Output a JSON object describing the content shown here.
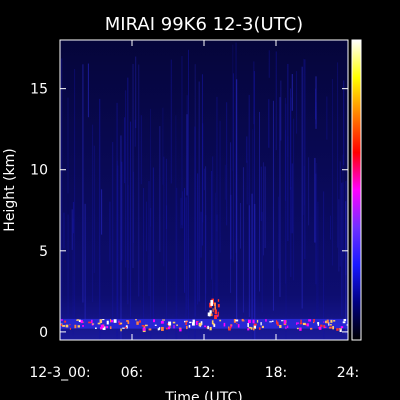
{
  "chart_data": {
    "type": "heatmap",
    "title": "MIRAI 99K6 12-3(UTC)",
    "xlabel": "Time (UTC)",
    "ylabel": "Height (km)",
    "x_tick_labels": [
      "12-3_00:",
      "06:",
      "12:",
      "18:",
      "24:"
    ],
    "x_tick_values": [
      0,
      6,
      12,
      18,
      24
    ],
    "xlim": [
      0,
      24
    ],
    "y_tick_labels": [
      "0",
      "5",
      "10",
      "15"
    ],
    "y_tick_values": [
      0,
      5,
      10,
      15
    ],
    "ylim": [
      -0.5,
      18
    ],
    "background_value_color": "#0b0b66",
    "colorbar": {
      "colors": [
        "#000000",
        "#000080",
        "#1818ff",
        "#7030ff",
        "#ff00ff",
        "#ff0000",
        "#ff8000",
        "#ffff00",
        "#ffffff"
      ],
      "labels": []
    },
    "grid": false,
    "echo_features": [
      {
        "desc": "near-surface echo layer",
        "x_range": [
          0,
          24
        ],
        "height_range": [
          0.2,
          0.8
        ],
        "peak_color": "#ffcc66"
      },
      {
        "desc": "elevated echo cells",
        "x_range": [
          12.3,
          13.2
        ],
        "height_range": [
          1.0,
          2.1
        ],
        "peak_color": "#ffcc66"
      }
    ]
  }
}
